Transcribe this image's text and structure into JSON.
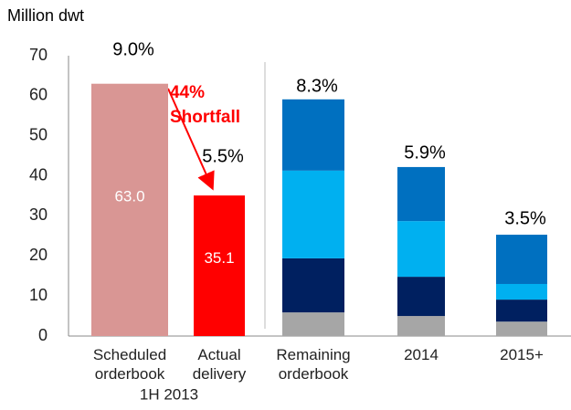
{
  "chart_data": {
    "type": "bar",
    "y_axis_label": "Million dwt",
    "categories": [
      [
        "Scheduled",
        "orderbook"
      ],
      [
        "Actual",
        "delivery"
      ],
      [
        "Remaining",
        "orderbook"
      ],
      [
        "2014"
      ],
      [
        "2015+"
      ]
    ],
    "group_label": "1H 2013",
    "series": [
      {
        "colors": [
          "#d99694",
          "#ff0000"
        ],
        "values": [
          63.0,
          35.1,
          null,
          null,
          null
        ],
        "value_labels": [
          "63.0",
          "35.1",
          null,
          null,
          null
        ]
      },
      {
        "color": "#a6a6a6",
        "values": [
          null,
          null,
          5.9,
          5.0,
          3.6
        ]
      },
      {
        "color": "#002060",
        "values": [
          null,
          null,
          13.5,
          9.8,
          5.5
        ]
      },
      {
        "color": "#00b0f0",
        "values": [
          null,
          null,
          21.9,
          13.9,
          3.9
        ]
      },
      {
        "color": "#0070c0",
        "values": [
          null,
          null,
          17.8,
          13.5,
          12.3
        ]
      }
    ],
    "top_labels": [
      "9.0%",
      "5.5%",
      "8.3%",
      "5.9%",
      "3.5%"
    ],
    "annotation": [
      "44%",
      "Shortfall"
    ],
    "annotation_color": "#ff0000",
    "ylim": [
      0,
      70
    ],
    "yticks": [
      0,
      10,
      20,
      30,
      40,
      50,
      60,
      70
    ]
  }
}
